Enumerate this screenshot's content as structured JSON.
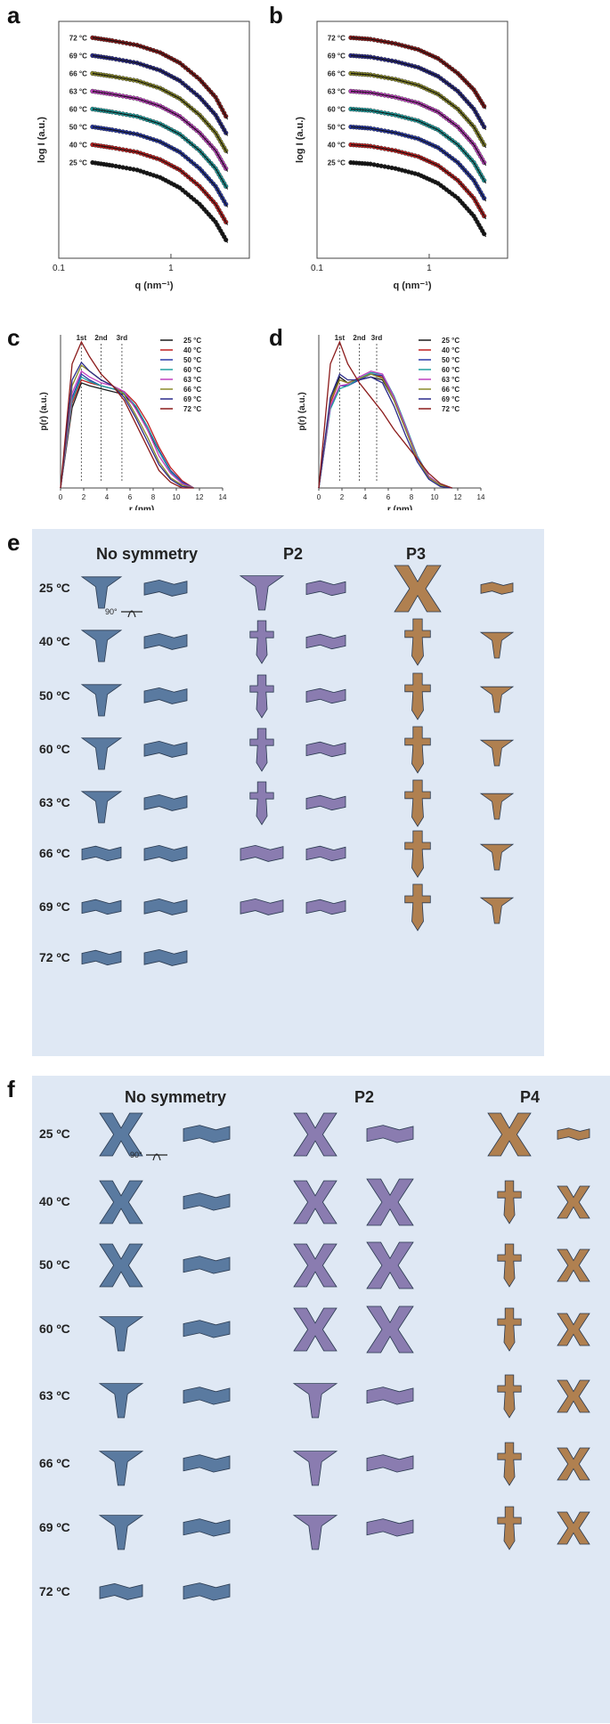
{
  "panel_labels": {
    "a": "a",
    "b": "b",
    "c": "c",
    "d": "d",
    "e": "e",
    "f": "f"
  },
  "temps_label": [
    "72 °C",
    "69 °C",
    "66 °C",
    "63 °C",
    "60 °C",
    "50 °C",
    "40 °C",
    "25 °C"
  ],
  "colors": {
    "72 °C": "#8b1a1a",
    "69 °C": "#2b2b8a",
    "66 °C": "#8a8a2a",
    "63 °C": "#c040c0",
    "60 °C": "#20a0a0",
    "50 °C": "#2a3aa8",
    "40 °C": "#c02020",
    "25 °C": "#1a1a1a",
    "panel_bg": "#dfe8f4",
    "blue_model": "#5a7aa0",
    "purple_model": "#8a7cb0",
    "tan_model": "#b08050"
  },
  "chart_data": [
    {
      "id": "a",
      "type": "scatter",
      "xlabel": "q (nm⁻¹)",
      "ylabel": "log I (a.u.)",
      "x_scale": "log",
      "xlim": [
        0.1,
        5
      ],
      "x_ticks": [
        "0.1",
        "1"
      ],
      "series": [
        {
          "name": "72 °C",
          "q": [
            0.2,
            0.3,
            0.5,
            0.8,
            1.2,
            1.8,
            2.5,
            3.2
          ],
          "y": [
            100,
            98,
            95,
            90,
            83,
            72,
            60,
            45
          ]
        },
        {
          "name": "69 °C",
          "q": [
            0.2,
            0.3,
            0.5,
            0.8,
            1.2,
            1.8,
            2.5,
            3.2
          ],
          "y": [
            88,
            86,
            83,
            78,
            71,
            60,
            48,
            34
          ]
        },
        {
          "name": "66 °C",
          "q": [
            0.2,
            0.3,
            0.5,
            0.8,
            1.2,
            1.8,
            2.5,
            3.2
          ],
          "y": [
            76,
            74,
            71,
            66,
            59,
            48,
            36,
            22
          ]
        },
        {
          "name": "63 °C",
          "q": [
            0.2,
            0.3,
            0.5,
            0.8,
            1.2,
            1.8,
            2.5,
            3.2
          ],
          "y": [
            64,
            62,
            59,
            54,
            47,
            36,
            24,
            10
          ]
        },
        {
          "name": "60 °C",
          "q": [
            0.2,
            0.3,
            0.5,
            0.8,
            1.2,
            1.8,
            2.5,
            3.2
          ],
          "y": [
            52,
            50,
            47,
            42,
            35,
            24,
            12,
            -2
          ]
        },
        {
          "name": "50 °C",
          "q": [
            0.2,
            0.3,
            0.5,
            0.8,
            1.2,
            1.8,
            2.5,
            3.2
          ],
          "y": [
            40,
            38,
            35,
            30,
            23,
            12,
            0,
            -14
          ]
        },
        {
          "name": "40 °C",
          "q": [
            0.2,
            0.3,
            0.5,
            0.8,
            1.2,
            1.8,
            2.5,
            3.2
          ],
          "y": [
            28,
            26,
            23,
            18,
            11,
            0,
            -12,
            -26
          ]
        },
        {
          "name": "25 °C",
          "q": [
            0.2,
            0.3,
            0.5,
            0.8,
            1.2,
            1.8,
            2.5,
            3.2
          ],
          "y": [
            16,
            14,
            11,
            6,
            -1,
            -12,
            -24,
            -38
          ]
        }
      ]
    },
    {
      "id": "b",
      "type": "scatter",
      "xlabel": "q (nm⁻¹)",
      "ylabel": "log I (a.u.)",
      "x_scale": "log",
      "xlim": [
        0.1,
        5
      ],
      "x_ticks": [
        "0.1",
        "1"
      ],
      "series": [
        {
          "name": "72 °C",
          "q": [
            0.2,
            0.3,
            0.5,
            0.8,
            1.2,
            1.8,
            2.5,
            3.2
          ],
          "y": [
            100,
            99,
            96,
            92,
            86,
            76,
            65,
            52
          ]
        },
        {
          "name": "69 °C",
          "q": [
            0.2,
            0.3,
            0.5,
            0.8,
            1.2,
            1.8,
            2.5,
            3.2
          ],
          "y": [
            88,
            87,
            84,
            80,
            74,
            64,
            52,
            38
          ]
        },
        {
          "name": "66 °C",
          "q": [
            0.2,
            0.3,
            0.5,
            0.8,
            1.2,
            1.8,
            2.5,
            3.2
          ],
          "y": [
            76,
            75,
            72,
            68,
            62,
            52,
            40,
            26
          ]
        },
        {
          "name": "63 °C",
          "q": [
            0.2,
            0.3,
            0.5,
            0.8,
            1.2,
            1.8,
            2.5,
            3.2
          ],
          "y": [
            64,
            63,
            60,
            56,
            50,
            40,
            28,
            14
          ]
        },
        {
          "name": "60 °C",
          "q": [
            0.2,
            0.3,
            0.5,
            0.8,
            1.2,
            1.8,
            2.5,
            3.2
          ],
          "y": [
            52,
            51,
            48,
            44,
            38,
            28,
            16,
            2
          ]
        },
        {
          "name": "50 °C",
          "q": [
            0.2,
            0.3,
            0.5,
            0.8,
            1.2,
            1.8,
            2.5,
            3.2
          ],
          "y": [
            40,
            39,
            36,
            32,
            26,
            16,
            4,
            -10
          ]
        },
        {
          "name": "40 °C",
          "q": [
            0.2,
            0.3,
            0.5,
            0.8,
            1.2,
            1.8,
            2.5,
            3.2
          ],
          "y": [
            28,
            27,
            24,
            20,
            14,
            4,
            -8,
            -22
          ]
        },
        {
          "name": "25 °C",
          "q": [
            0.2,
            0.3,
            0.5,
            0.8,
            1.2,
            1.8,
            2.5,
            3.2
          ],
          "y": [
            16,
            15,
            12,
            8,
            2,
            -8,
            -20,
            -34
          ]
        }
      ]
    },
    {
      "id": "c",
      "type": "line",
      "xlabel": "r (nm)",
      "ylabel": "p(r) (a.u.)",
      "xlim": [
        0,
        14
      ],
      "ylim": [
        0,
        1
      ],
      "x_ticks": [
        0,
        2,
        4,
        6,
        8,
        10,
        12,
        14
      ],
      "markers": [
        {
          "x": 1.8,
          "label": "1st"
        },
        {
          "x": 3.5,
          "label": "2nd"
        },
        {
          "x": 5.3,
          "label": "3rd"
        }
      ],
      "legend_position": "top-right",
      "x": [
        0,
        1,
        1.8,
        2.5,
        3.5,
        4.5,
        5.5,
        6.5,
        7.5,
        8.5,
        9.5,
        10.5,
        11.5
      ],
      "series": [
        {
          "name": "25 °C",
          "values": [
            0,
            0.55,
            0.72,
            0.7,
            0.68,
            0.66,
            0.64,
            0.55,
            0.4,
            0.25,
            0.12,
            0.04,
            0
          ]
        },
        {
          "name": "40 °C",
          "values": [
            0,
            0.58,
            0.74,
            0.72,
            0.7,
            0.68,
            0.66,
            0.58,
            0.45,
            0.28,
            0.14,
            0.05,
            0
          ]
        },
        {
          "name": "50 °C",
          "values": [
            0,
            0.62,
            0.78,
            0.74,
            0.7,
            0.68,
            0.65,
            0.56,
            0.42,
            0.26,
            0.12,
            0.04,
            0
          ]
        },
        {
          "name": "60 °C",
          "values": [
            0,
            0.6,
            0.76,
            0.73,
            0.7,
            0.68,
            0.65,
            0.56,
            0.42,
            0.25,
            0.11,
            0.03,
            0
          ]
        },
        {
          "name": "63 °C",
          "values": [
            0,
            0.65,
            0.8,
            0.76,
            0.72,
            0.7,
            0.66,
            0.54,
            0.4,
            0.22,
            0.1,
            0.03,
            0
          ]
        },
        {
          "name": "66 °C",
          "values": [
            0,
            0.7,
            0.84,
            0.8,
            0.74,
            0.7,
            0.64,
            0.5,
            0.35,
            0.18,
            0.07,
            0.02,
            0
          ]
        },
        {
          "name": "69 °C",
          "values": [
            0,
            0.74,
            0.86,
            0.8,
            0.74,
            0.7,
            0.62,
            0.48,
            0.32,
            0.16,
            0.06,
            0.01,
            0
          ]
        },
        {
          "name": "72 °C",
          "values": [
            0,
            0.85,
            1.0,
            0.9,
            0.78,
            0.7,
            0.6,
            0.44,
            0.28,
            0.12,
            0.04,
            0,
            0
          ]
        }
      ]
    },
    {
      "id": "d",
      "type": "line",
      "xlabel": "r (nm)",
      "ylabel": "p(r) (a.u.)",
      "xlim": [
        0,
        14
      ],
      "ylim": [
        0,
        1
      ],
      "x_ticks": [
        0,
        2,
        4,
        6,
        8,
        10,
        12,
        14
      ],
      "markers": [
        {
          "x": 1.8,
          "label": "1st"
        },
        {
          "x": 3.5,
          "label": "2nd"
        },
        {
          "x": 5.0,
          "label": "3rd"
        }
      ],
      "legend_position": "top-right",
      "x": [
        0,
        1,
        1.8,
        2.5,
        3.5,
        4.5,
        5.5,
        6.5,
        7.5,
        8.5,
        9.5,
        10.5,
        11.5
      ],
      "series": [
        {
          "name": "25 °C",
          "values": [
            0,
            0.6,
            0.76,
            0.72,
            0.74,
            0.76,
            0.74,
            0.6,
            0.4,
            0.2,
            0.08,
            0.02,
            0
          ]
        },
        {
          "name": "40 °C",
          "values": [
            0,
            0.58,
            0.74,
            0.72,
            0.75,
            0.78,
            0.76,
            0.62,
            0.42,
            0.22,
            0.08,
            0.02,
            0
          ]
        },
        {
          "name": "50 °C",
          "values": [
            0,
            0.55,
            0.7,
            0.7,
            0.74,
            0.78,
            0.77,
            0.62,
            0.42,
            0.22,
            0.08,
            0.02,
            0
          ]
        },
        {
          "name": "60 °C",
          "values": [
            0,
            0.54,
            0.68,
            0.7,
            0.75,
            0.79,
            0.78,
            0.63,
            0.43,
            0.22,
            0.08,
            0.02,
            0
          ]
        },
        {
          "name": "63 °C",
          "values": [
            0,
            0.56,
            0.7,
            0.71,
            0.76,
            0.8,
            0.78,
            0.62,
            0.42,
            0.21,
            0.08,
            0.02,
            0
          ]
        },
        {
          "name": "66 °C",
          "values": [
            0,
            0.6,
            0.74,
            0.72,
            0.75,
            0.78,
            0.75,
            0.6,
            0.4,
            0.2,
            0.07,
            0.02,
            0
          ]
        },
        {
          "name": "69 °C",
          "values": [
            0,
            0.62,
            0.78,
            0.74,
            0.74,
            0.76,
            0.72,
            0.56,
            0.36,
            0.18,
            0.06,
            0.01,
            0
          ]
        },
        {
          "name": "72 °C",
          "values": [
            0,
            0.85,
            1.0,
            0.85,
            0.72,
            0.62,
            0.52,
            0.4,
            0.3,
            0.2,
            0.1,
            0.03,
            0
          ]
        }
      ]
    }
  ],
  "panel_e": {
    "headers": [
      "No symmetry",
      "P2",
      "P3"
    ],
    "rows": [
      "25 ºC",
      "40 ºC",
      "50 ºC",
      "60 ºC",
      "63 ºC",
      "66 ºC",
      "69 ºC",
      "72 ºC"
    ],
    "rotation_label": "90°"
  },
  "panel_f": {
    "headers": [
      "No symmetry",
      "P2",
      "P4"
    ],
    "rows": [
      "25 ºC",
      "40 ºC",
      "50 ºC",
      "60 ºC",
      "63 ºC",
      "66 ºC",
      "69 ºC",
      "72 ºC"
    ],
    "rotation_label": "90°"
  }
}
